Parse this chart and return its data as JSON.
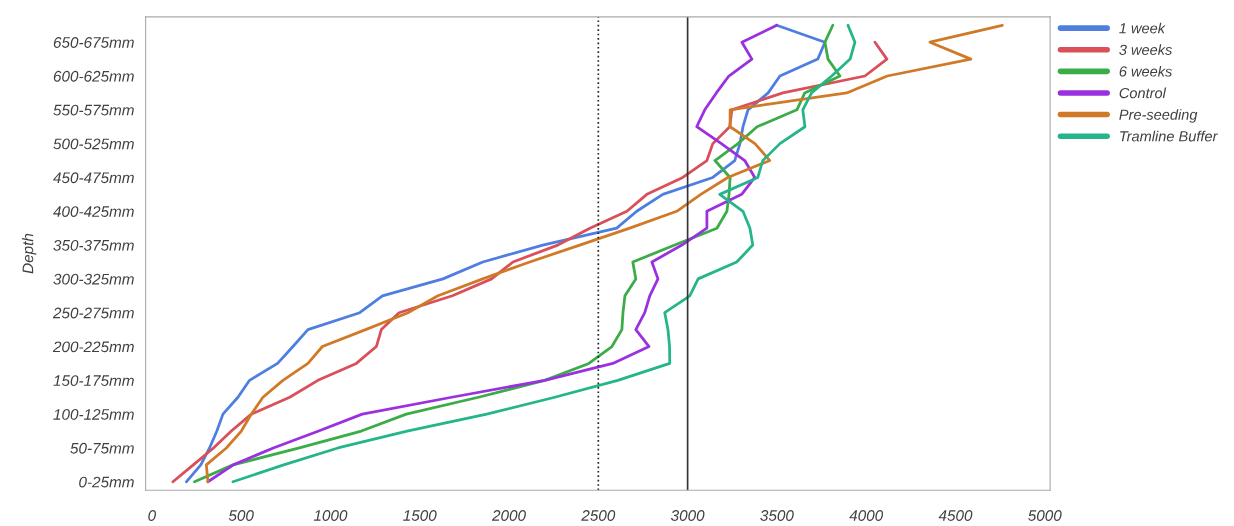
{
  "chart_data": {
    "type": "line",
    "orientation": "horizontal",
    "ylabel": "Depth",
    "categories": [
      null,
      "650-675mm",
      null,
      "600-625mm",
      null,
      "550-575mm",
      null,
      "500-525mm",
      null,
      "450-475mm",
      null,
      "400-425mm",
      null,
      "350-375mm",
      null,
      "300-325mm",
      null,
      "250-275mm",
      null,
      "200-225mm",
      null,
      "150-175mm",
      null,
      "100-125mm",
      null,
      "50-75mm",
      null,
      "0-25mm"
    ],
    "series": [
      {
        "name": "1 week",
        "color": "#4e7fe0",
        "values": [
          3499,
          3769,
          3729,
          3517,
          3451,
          3338,
          3310,
          3293,
          3264,
          3141,
          2861,
          2715,
          2603,
          2189,
          1853,
          1630,
          1291,
          1164,
          874,
          790,
          704,
          547,
          482,
          398,
          364,
          323,
          274,
          193
        ]
      },
      {
        "name": "3 weeks",
        "color": "#d9505a",
        "values": [
          null,
          4049,
          4116,
          3993,
          3533,
          3248,
          3236,
          3141,
          3108,
          2973,
          2772,
          2660,
          2453,
          2273,
          2022,
          1902,
          1683,
          1384,
          1285,
          1257,
          1145,
          930,
          772,
          557,
          445,
          345,
          232,
          118
        ]
      },
      {
        "name": "6 weeks",
        "color": "#3aad48",
        "values": [
          3813,
          3769,
          3786,
          3853,
          3656,
          3612,
          3389,
          3282,
          3153,
          3238,
          3232,
          3220,
          3164,
          2928,
          2693,
          2710,
          2649,
          2638,
          2632,
          2576,
          2447,
          2200,
          1829,
          1425,
          1173,
          826,
          454,
          239
        ]
      },
      {
        "name": "Control",
        "color": "#9b30e0",
        "values": [
          3499,
          3304,
          3360,
          3231,
          3161,
          3096,
          3051,
          3189,
          3320,
          3376,
          3303,
          3108,
          3108,
          2968,
          2800,
          2834,
          2788,
          2760,
          2710,
          2784,
          2581,
          2200,
          1679,
          1178,
          934,
          680,
          456,
          314
        ]
      },
      {
        "name": "Pre-seeding",
        "color": "#d07a28",
        "values": [
          4762,
          4357,
          4586,
          4118,
          3891,
          3238,
          3238,
          3377,
          3460,
          3225,
          3074,
          2939,
          2676,
          2396,
          2116,
          1853,
          1602,
          1434,
          1197,
          955,
          874,
          734,
          622,
          557,
          501,
          417,
          305,
          314
        ]
      },
      {
        "name": "Tramline Buffer",
        "color": "#25b58a",
        "values": [
          3898,
          3937,
          3910,
          3807,
          3694,
          3645,
          3657,
          3517,
          3421,
          3393,
          3180,
          3310,
          3349,
          3365,
          3275,
          3059,
          3012,
          2872,
          2890,
          2899,
          2900,
          2609,
          2256,
          1875,
          1429,
          1042,
          738,
          454
        ]
      }
    ],
    "xlim": [
      -35,
      5030
    ],
    "xticks": [
      0,
      500,
      1000,
      1500,
      2000,
      2500,
      3000,
      3500,
      4000,
      4500,
      5000
    ],
    "ref_lines": [
      {
        "axis": "x",
        "value": 2500,
        "color": "#222222",
        "line_style": "dotted"
      },
      {
        "axis": "x",
        "value": 3000,
        "color": "#333333",
        "line_style": "solid"
      }
    ],
    "grid": false,
    "legend": "top right",
    "marker": "none",
    "line_style": "solid"
  }
}
